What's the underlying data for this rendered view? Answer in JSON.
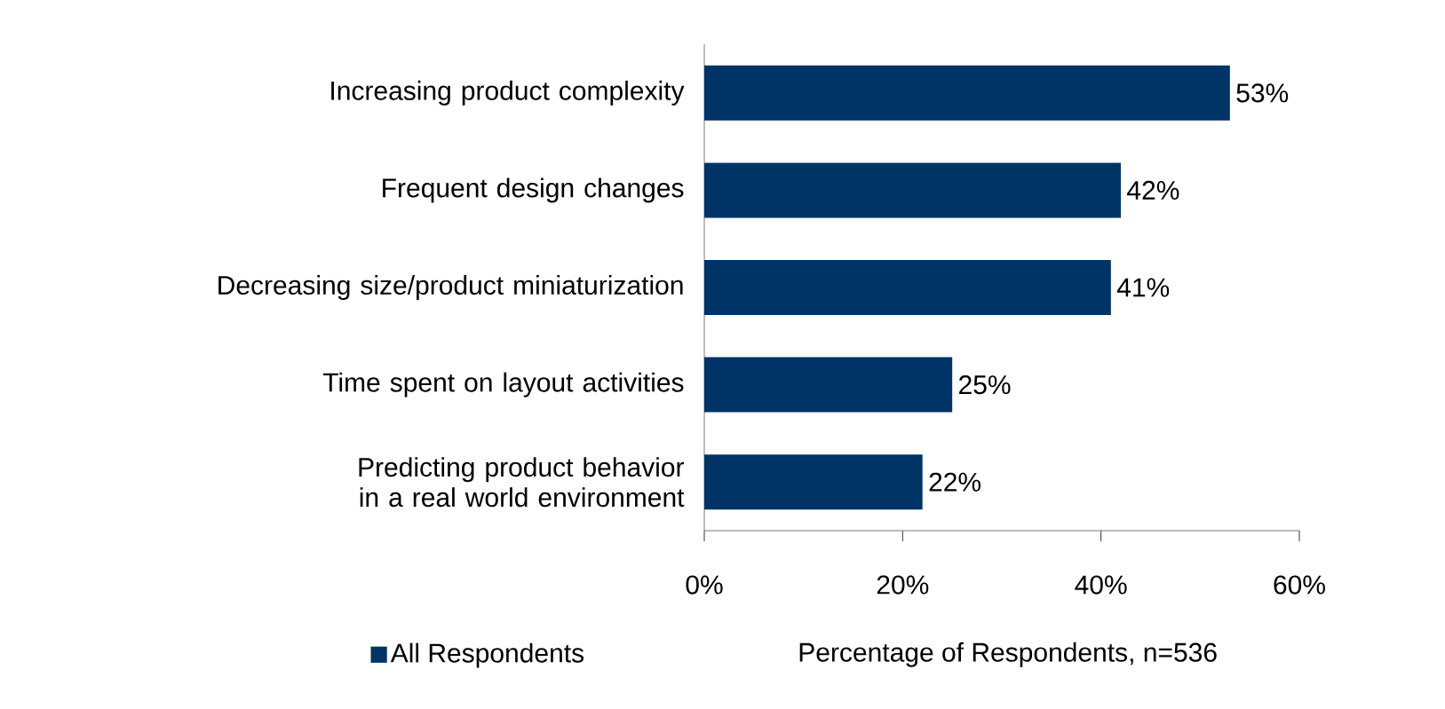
{
  "chart_data": {
    "type": "bar",
    "orientation": "horizontal",
    "categories": [
      "Increasing product complexity",
      "Frequent design changes",
      "Decreasing size/product miniaturization",
      "Time spent on layout activities",
      "Predicting product behavior in a real world environment"
    ],
    "series": [
      {
        "name": "All Respondents",
        "color": "#003366",
        "values": [
          53,
          42,
          41,
          25,
          22
        ],
        "value_labels": [
          "53%",
          "42%",
          "41%",
          "25%",
          "22%"
        ]
      }
    ],
    "xlim": [
      0,
      60
    ],
    "xticks": [
      {
        "value": 0,
        "label": "0%"
      },
      {
        "value": 20,
        "label": "20%"
      },
      {
        "value": 40,
        "label": "40%"
      },
      {
        "value": 60,
        "label": "60%"
      }
    ],
    "xlabel": "Percentage of Respondents, n=536",
    "legend": "bottom",
    "grid": false
  }
}
